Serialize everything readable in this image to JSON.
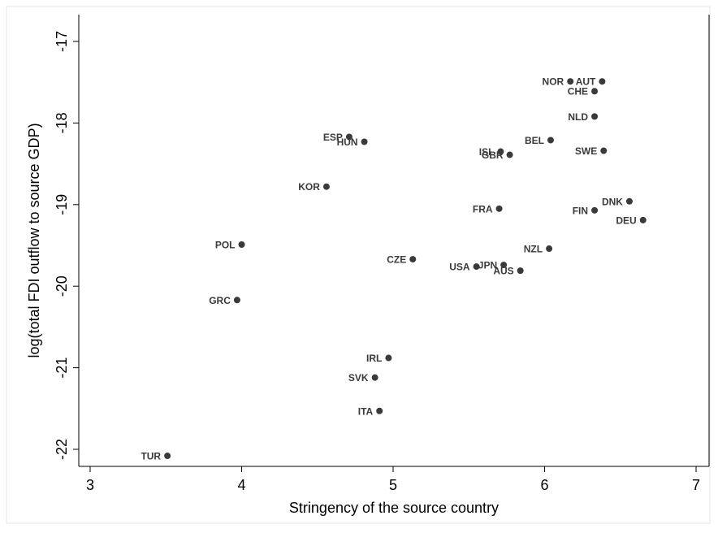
{
  "chart_data": {
    "type": "scatter",
    "title": "",
    "xlabel": "Stringency of the source country",
    "ylabel": "log(total FDI outflow to source GDP)",
    "xlim": [
      3,
      7
    ],
    "ylim": [
      -22,
      -17
    ],
    "xticks": [
      3,
      4,
      5,
      6,
      7
    ],
    "yticks": [
      -17,
      -18,
      -19,
      -20,
      -21,
      -22
    ],
    "grid": false,
    "legend": "none",
    "colors": {
      "background": "#ffffff",
      "plot_border": "#000000",
      "marker": "#3a3a3a",
      "label": "#3a3a3a",
      "outer_panel": "#f2f2f2"
    },
    "points": [
      {
        "label": "NOR",
        "x": 6.17,
        "y": -17.49,
        "anchor": "end"
      },
      {
        "label": "AUT",
        "x": 6.38,
        "y": -17.49,
        "anchor": "end"
      },
      {
        "label": "CHE",
        "x": 6.33,
        "y": -17.61,
        "anchor": "end"
      },
      {
        "label": "NLD",
        "x": 6.33,
        "y": -17.92,
        "anchor": "end"
      },
      {
        "label": "BEL",
        "x": 6.04,
        "y": -18.21,
        "anchor": "end"
      },
      {
        "label": "SWE",
        "x": 6.39,
        "y": -18.34,
        "anchor": "end"
      },
      {
        "label": "ISL",
        "x": 5.71,
        "y": -18.35,
        "anchor": "end"
      },
      {
        "label": "GBR",
        "x": 5.77,
        "y": -18.39,
        "anchor": "end"
      },
      {
        "label": "ESP",
        "x": 4.71,
        "y": -18.17,
        "anchor": "end"
      },
      {
        "label": "HUN",
        "x": 4.81,
        "y": -18.23,
        "anchor": "end"
      },
      {
        "label": "KOR",
        "x": 4.56,
        "y": -18.78,
        "anchor": "end"
      },
      {
        "label": "DNK",
        "x": 6.56,
        "y": -18.96,
        "anchor": "end"
      },
      {
        "label": "FRA",
        "x": 5.7,
        "y": -19.05,
        "anchor": "end"
      },
      {
        "label": "FIN",
        "x": 6.33,
        "y": -19.07,
        "anchor": "end"
      },
      {
        "label": "DEU",
        "x": 6.65,
        "y": -19.19,
        "anchor": "end"
      },
      {
        "label": "POL",
        "x": 4.0,
        "y": -19.49,
        "anchor": "end"
      },
      {
        "label": "NZL",
        "x": 6.03,
        "y": -19.54,
        "anchor": "end"
      },
      {
        "label": "CZE",
        "x": 5.13,
        "y": -19.67,
        "anchor": "end"
      },
      {
        "label": "USA",
        "x": 5.55,
        "y": -19.76,
        "anchor": "end"
      },
      {
        "label": "JPN",
        "x": 5.73,
        "y": -19.74,
        "anchor": "end"
      },
      {
        "label": "AUS",
        "x": 5.84,
        "y": -19.81,
        "anchor": "end"
      },
      {
        "label": "GRC",
        "x": 3.97,
        "y": -20.17,
        "anchor": "end"
      },
      {
        "label": "IRL",
        "x": 4.97,
        "y": -20.88,
        "anchor": "end"
      },
      {
        "label": "SVK",
        "x": 4.88,
        "y": -21.12,
        "anchor": "end"
      },
      {
        "label": "ITA",
        "x": 4.91,
        "y": -21.53,
        "anchor": "end"
      },
      {
        "label": "TUR",
        "x": 3.51,
        "y": -22.08,
        "anchor": "end"
      }
    ]
  }
}
